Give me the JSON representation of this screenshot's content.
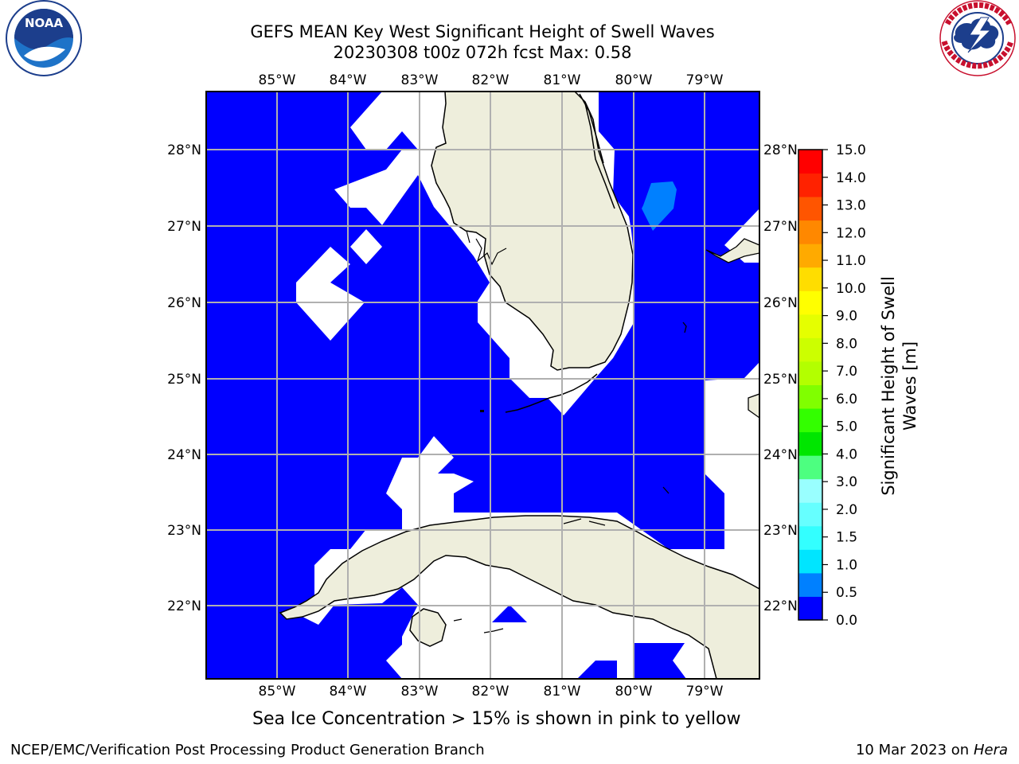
{
  "header": {
    "title_line1": "GEFS MEAN Key West Significant Height of Swell Waves",
    "title_line2": "20230308 t00z 072h fcst   Max: 0.58"
  },
  "logos": {
    "left": {
      "icon": "noaa-logo",
      "text": "NOAA",
      "ring_text": "NATIONAL OCEANIC AND ATMOSPHERIC ADMINISTRATION · U.S. DEPARTMENT OF COMMERCE"
    },
    "right": {
      "icon": "nws-logo",
      "ring_text": "NATIONAL WEATHER SERVICE"
    }
  },
  "map": {
    "lon_labels": [
      "85°W",
      "84°W",
      "83°W",
      "82°W",
      "81°W",
      "80°W",
      "79°W"
    ],
    "lat_labels": [
      "28°N",
      "27°N",
      "26°N",
      "25°N",
      "24°N",
      "23°N",
      "22°N"
    ],
    "colors": {
      "ocean_swell": "#0000ff",
      "swell_05_10": "#0080ff",
      "land": "#eeeedc",
      "no_data": "#ffffff",
      "grid": "#b0b0b0"
    }
  },
  "colorbar": {
    "label_line1": "Significant Height of Swell",
    "label_line2": "Waves [m]",
    "ticks": [
      "0.0",
      "0.5",
      "1.0",
      "1.5",
      "2.0",
      "3.0",
      "4.0",
      "5.0",
      "6.0",
      "7.0",
      "8.0",
      "9.0",
      "10.0",
      "11.0",
      "12.0",
      "13.0",
      "14.0",
      "15.0"
    ],
    "colors": [
      "#0000ff",
      "#0080ff",
      "#00e5ff",
      "#33ffff",
      "#66ffff",
      "#99ffff",
      "#4dff80",
      "#00e600",
      "#33ff00",
      "#80ff00",
      "#b3ff00",
      "#ccff00",
      "#e5ff00",
      "#ffff00",
      "#ffdd00",
      "#ffaa00",
      "#ff8800",
      "#ff5500",
      "#ff2200",
      "#ff0000"
    ]
  },
  "note": "Sea Ice Concentration > 15% is shown in pink to yellow",
  "footer": {
    "left": "NCEP/EMC/Verification Post Processing Product Generation Branch",
    "right_date": "10 Mar 2023 on",
    "right_host": "Hera"
  }
}
